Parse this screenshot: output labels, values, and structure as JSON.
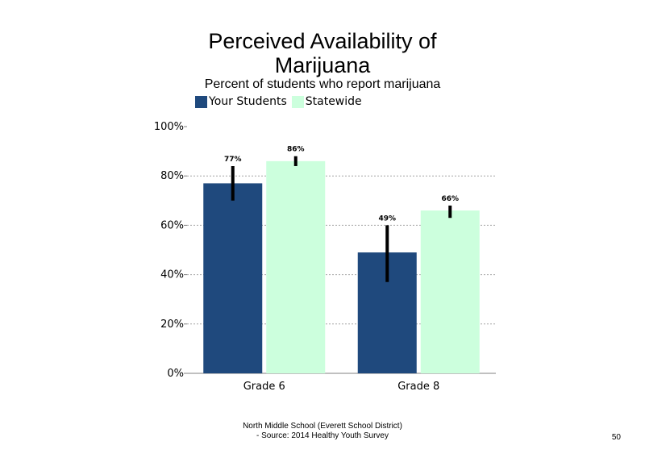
{
  "title_line1": "Perceived Availability of",
  "title_line2": "Marijuana",
  "subtitle": "Percent of students  who report marijuana",
  "footer_line1": "North Middle  School (Everett School District)",
  "footer_line2": "- Source: 2014 Healthy  Youth Survey",
  "page_number": "50",
  "colors": {
    "your_students": "#1f497d",
    "statewide": "#ccffdd",
    "error_bar": "#000000",
    "grid": "#a6a6a6"
  },
  "chart_data": {
    "type": "bar",
    "title": "Perceived Availability of Marijuana",
    "subtitle": "Percent of students  who report marijuana",
    "categories": [
      "Grade 6",
      "Grade 8"
    ],
    "series": [
      {
        "name": "Your Students",
        "values": [
          77,
          49
        ],
        "labels": [
          "77%",
          "49%"
        ],
        "error_low": [
          70,
          37
        ],
        "error_high": [
          84,
          60
        ]
      },
      {
        "name": "Statewide",
        "values": [
          86,
          66
        ],
        "labels": [
          "86%",
          "66%"
        ],
        "error_low": [
          84,
          63
        ],
        "error_high": [
          88,
          68
        ]
      }
    ],
    "ylim": [
      0,
      100
    ],
    "yticks": [
      0,
      20,
      40,
      60,
      80,
      100
    ],
    "ytick_labels": [
      "0%",
      "20%",
      "40%",
      "60%",
      "80%",
      "100%"
    ],
    "grid": true,
    "legend_position": "top"
  }
}
